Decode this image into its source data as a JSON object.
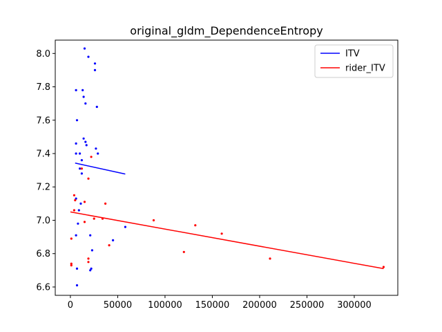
{
  "chart_data": {
    "type": "scatter",
    "title": "original_gldm_DependenceEntropy",
    "xlabel": "",
    "ylabel": "",
    "xlim": [
      -16000,
      346000
    ],
    "ylim": [
      6.55,
      8.08
    ],
    "xticks": [
      0,
      50000,
      100000,
      150000,
      200000,
      250000,
      300000
    ],
    "xtick_labels": [
      "0",
      "50000",
      "100000",
      "150000",
      "200000",
      "250000",
      "300000"
    ],
    "yticks": [
      6.6,
      6.8,
      7.0,
      7.2,
      7.4,
      7.6,
      7.8,
      8.0
    ],
    "ytick_labels": [
      "6.6",
      "6.8",
      "7.0",
      "7.2",
      "7.4",
      "7.6",
      "7.8",
      "8.0"
    ],
    "grid": false,
    "legend_position": "upper right",
    "series": [
      {
        "name": "ITV",
        "color": "#0000ff",
        "points": [
          [
            15000,
            8.03
          ],
          [
            19000,
            7.98
          ],
          [
            26000,
            7.94
          ],
          [
            26000,
            7.9
          ],
          [
            6000,
            7.78
          ],
          [
            13000,
            7.78
          ],
          [
            14000,
            7.74
          ],
          [
            16000,
            7.7
          ],
          [
            28000,
            7.68
          ],
          [
            7000,
            7.6
          ],
          [
            14000,
            7.49
          ],
          [
            16000,
            7.47
          ],
          [
            6000,
            7.46
          ],
          [
            17000,
            7.45
          ],
          [
            27000,
            7.43
          ],
          [
            6000,
            7.4
          ],
          [
            10000,
            7.4
          ],
          [
            29000,
            7.4
          ],
          [
            12000,
            7.36
          ],
          [
            10000,
            7.31
          ],
          [
            12000,
            7.28
          ],
          [
            6000,
            7.13
          ],
          [
            11000,
            7.1
          ],
          [
            9000,
            7.06
          ],
          [
            8000,
            6.98
          ],
          [
            58000,
            6.96
          ],
          [
            6000,
            6.91
          ],
          [
            21000,
            6.91
          ],
          [
            45000,
            6.88
          ],
          [
            23000,
            6.82
          ],
          [
            7000,
            6.71
          ],
          [
            22000,
            6.71
          ],
          [
            21000,
            6.7
          ],
          [
            7000,
            6.61
          ]
        ],
        "fit_line": {
          "x": [
            5000,
            58000
          ],
          "y": [
            7.343,
            7.277
          ]
        }
      },
      {
        "name": "rider_ITV",
        "color": "#ff0000",
        "points": [
          [
            22000,
            7.38
          ],
          [
            12000,
            7.31
          ],
          [
            19000,
            7.25
          ],
          [
            4000,
            7.15
          ],
          [
            5000,
            7.12
          ],
          [
            15000,
            7.11
          ],
          [
            37000,
            7.1
          ],
          [
            4000,
            7.06
          ],
          [
            25000,
            7.01
          ],
          [
            34000,
            7.01
          ],
          [
            15000,
            6.99
          ],
          [
            88000,
            7.0
          ],
          [
            132000,
            6.97
          ],
          [
            160000,
            6.92
          ],
          [
            41000,
            6.85
          ],
          [
            120000,
            6.81
          ],
          [
            1000,
            6.89
          ],
          [
            19000,
            6.77
          ],
          [
            19000,
            6.75
          ],
          [
            1000,
            6.74
          ],
          [
            1000,
            6.73
          ],
          [
            211000,
            6.77
          ],
          [
            331000,
            6.72
          ]
        ],
        "fit_line": {
          "x": [
            0,
            331000
          ],
          "y": [
            7.05,
            6.71
          ]
        }
      }
    ]
  }
}
